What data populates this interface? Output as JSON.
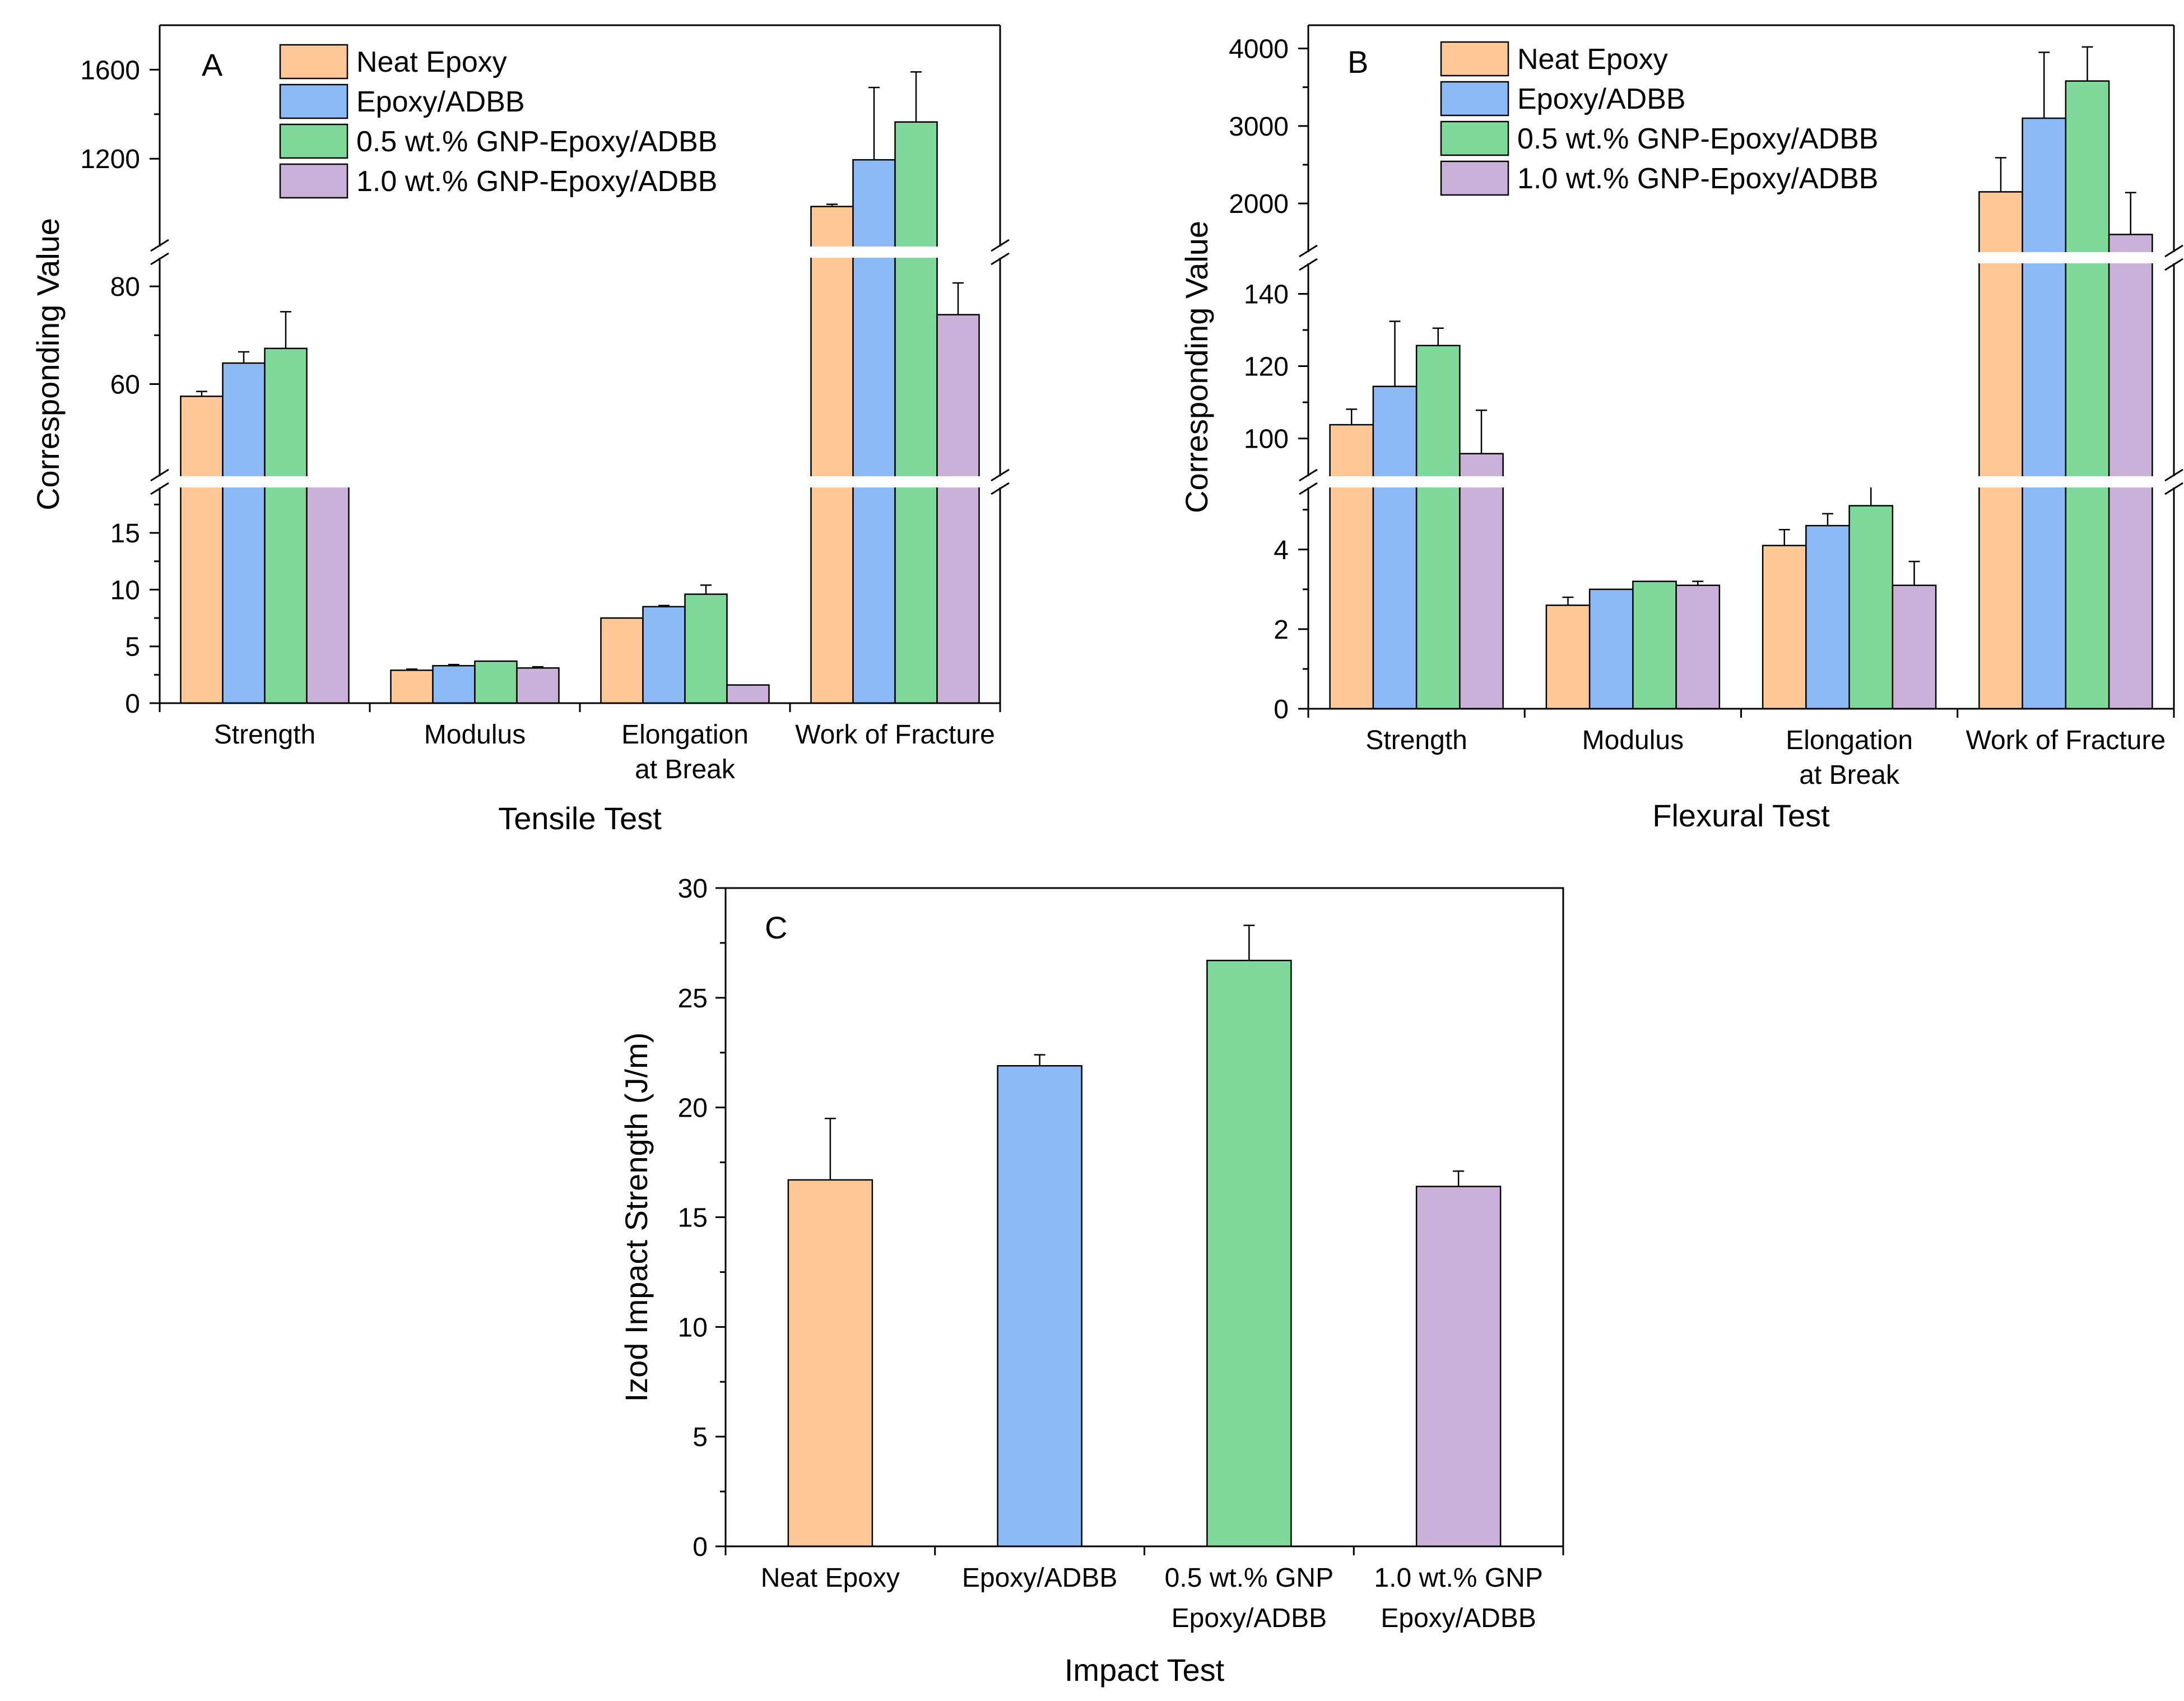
{
  "colors": {
    "neat_epoxy": "#FFC896",
    "epoxy_adbb": "#8BBAF6",
    "gnp_05": "#7FD99A",
    "gnp_10": "#C9B1D9"
  },
  "chart_data": [
    {
      "id": "A",
      "type": "bar",
      "panel_label": "A",
      "xlabel": "Tensile Test",
      "ylabel": "Corresponding Value",
      "categories": [
        "Strength",
        "Modulus",
        "Elongation\nat Break",
        "Work of Fracture"
      ],
      "series": [
        {
          "name": "Neat Epoxy",
          "color_key": "neat_epoxy",
          "values": [
            57.5,
            2.9,
            7.5,
            985
          ],
          "errors": [
            1.0,
            0.1,
            0.0,
            10
          ]
        },
        {
          "name": "Epoxy/ADBB",
          "color_key": "epoxy_adbb",
          "values": [
            64.3,
            3.3,
            8.5,
            1195
          ],
          "errors": [
            2.3,
            0.1,
            0.1,
            325
          ]
        },
        {
          "name": "0.5 wt.% GNP-Epoxy/ADBB",
          "color_key": "gnp_05",
          "values": [
            67.3,
            3.7,
            9.6,
            1365
          ],
          "errors": [
            7.5,
            0.0,
            0.8,
            225
          ]
        },
        {
          "name": "1.0 wt.% GNP-Epoxy/ADBB",
          "color_key": "gnp_10",
          "values": [
            19.3,
            3.1,
            1.6,
            74.2
          ],
          "errors": [
            0.0,
            0.1,
            0.0,
            6.5
          ]
        }
      ],
      "segments": [
        {
          "range": [
            0,
            19.5
          ],
          "ticks": [
            0,
            5,
            10,
            15
          ]
        },
        {
          "range": [
            40,
            87
          ],
          "ticks": [
            60,
            80
          ]
        },
        {
          "range": [
            780,
            1800
          ],
          "ticks": [
            1200,
            1600
          ]
        }
      ],
      "legend": "top-center"
    },
    {
      "id": "B",
      "type": "bar",
      "panel_label": "B",
      "xlabel": "Flexural Test",
      "ylabel": "Corresponding Value",
      "categories": [
        "Strength",
        "Modulus",
        "Elongation\nat Break",
        "Work of Fracture"
      ],
      "series": [
        {
          "name": "Neat Epoxy",
          "color_key": "neat_epoxy",
          "values": [
            103.8,
            2.6,
            4.1,
            2150
          ],
          "errors": [
            4.3,
            0.2,
            0.4,
            440
          ]
        },
        {
          "name": "Epoxy/ADBB",
          "color_key": "epoxy_adbb",
          "values": [
            114.4,
            3.0,
            4.6,
            3100
          ],
          "errors": [
            18.0,
            0.0,
            0.3,
            850
          ]
        },
        {
          "name": "0.5 wt.% GNP-Epoxy/ADBB",
          "color_key": "gnp_05",
          "values": [
            125.7,
            3.2,
            5.1,
            3580
          ],
          "errors": [
            4.8,
            0.0,
            0.8,
            440
          ]
        },
        {
          "name": "1.0 wt.% GNP-Epoxy/ADBB",
          "color_key": "gnp_10",
          "values": [
            95.8,
            3.1,
            3.1,
            1600
          ],
          "errors": [
            12.0,
            0.1,
            0.6,
            540
          ]
        }
      ],
      "segments": [
        {
          "range": [
            0,
            5.7
          ],
          "ticks": [
            0,
            2,
            4
          ]
        },
        {
          "range": [
            88,
            150
          ],
          "ticks": [
            100,
            120,
            140
          ]
        },
        {
          "range": [
            1300,
            4300
          ],
          "ticks": [
            2000,
            3000,
            4000
          ]
        }
      ],
      "legend": "top-center"
    },
    {
      "id": "C",
      "type": "bar",
      "panel_label": "C",
      "xlabel": "Impact Test",
      "ylabel": "Izod Impact Strength (J/m)",
      "categories": [
        "Neat Epoxy",
        "Epoxy/ADBB",
        "0.5 wt.% GNP\nEpoxy/ADBB",
        "1.0 wt.% GNP\nEpoxy/ADBB"
      ],
      "values": [
        16.7,
        21.9,
        26.7,
        16.4
      ],
      "errors": [
        2.8,
        0.5,
        1.6,
        0.7
      ],
      "color_keys": [
        "neat_epoxy",
        "epoxy_adbb",
        "gnp_05",
        "gnp_10"
      ],
      "ylim": [
        0,
        30
      ],
      "ticks": [
        0,
        5,
        10,
        15,
        20,
        25,
        30
      ]
    }
  ]
}
